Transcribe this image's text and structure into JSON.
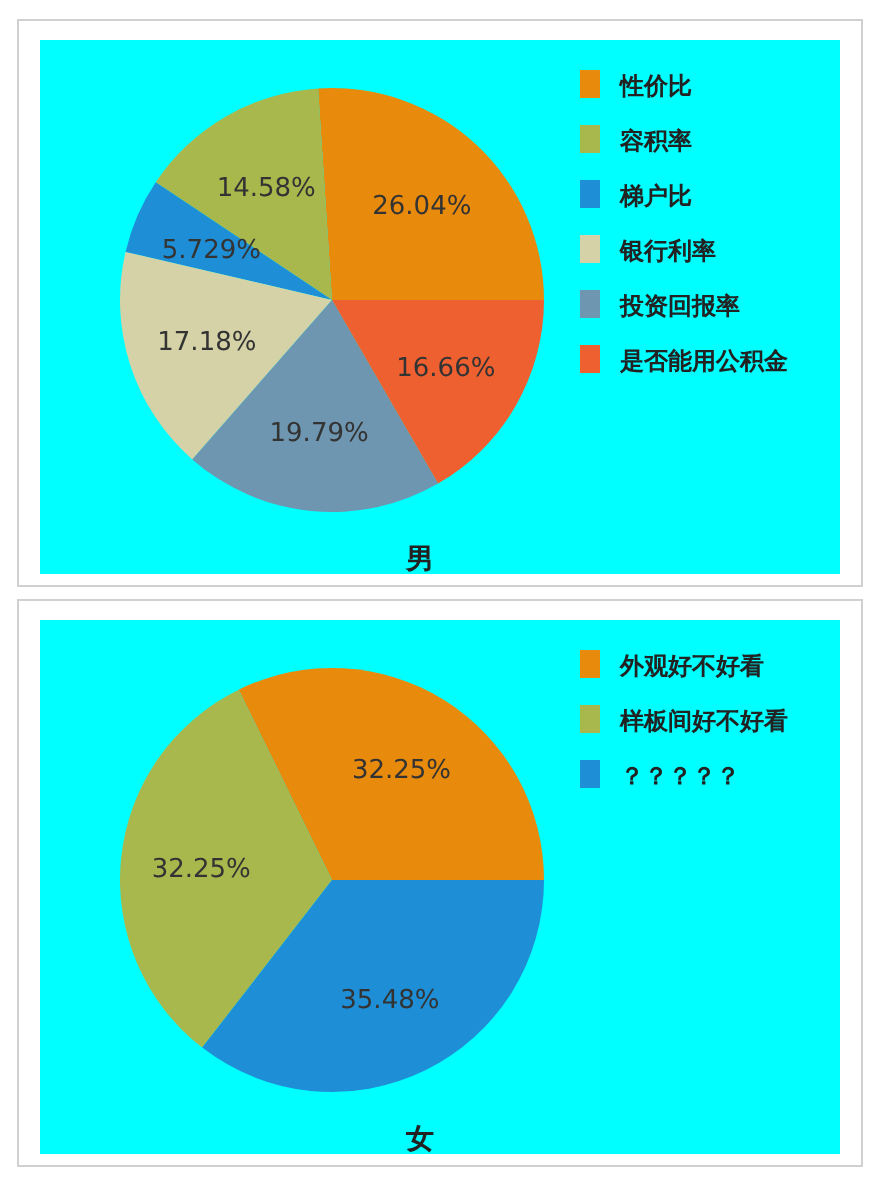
{
  "chart_data": [
    {
      "type": "pie",
      "title": "男",
      "legend": "top right",
      "categories": [
        "性价比",
        "容积率",
        "梯户比",
        "银行利率",
        "投资回报率",
        "是否能用公积金"
      ],
      "values": [
        26.04,
        14.58,
        5.729,
        17.18,
        19.79,
        16.66
      ],
      "value_labels": [
        "26.04%",
        "14.58%",
        "5.729%",
        "17.18%",
        "19.79%",
        "16.66%"
      ],
      "colors": [
        "#e88a0c",
        "#a9b84c",
        "#1e8fd6",
        "#d4d2a6",
        "#6f96b0",
        "#ef6030"
      ]
    },
    {
      "type": "pie",
      "title": "女",
      "legend": "top right",
      "categories": [
        "外观好不好看",
        "样板间好不好看",
        "？？？？？"
      ],
      "values": [
        32.25,
        32.25,
        35.48
      ],
      "value_labels": [
        "32.25%",
        "32.25%",
        "35.48%"
      ],
      "colors": [
        "#e88a0c",
        "#a9b84c",
        "#1e8fd6"
      ]
    }
  ]
}
